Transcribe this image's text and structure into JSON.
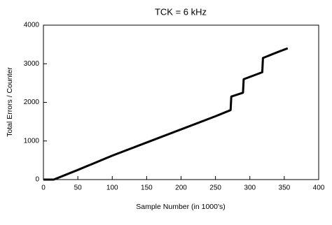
{
  "chart_data": {
    "type": "line",
    "title": "TCK = 6 kHz",
    "xlabel": "Sample Number (in 1000's)",
    "ylabel": "Total Errors / Counter",
    "x": [
      0,
      15,
      50,
      100,
      150,
      200,
      250,
      272,
      273,
      290,
      291,
      318,
      319,
      340,
      355
    ],
    "series": [
      {
        "color": "#000000",
        "values": [
          0,
          0,
          250,
          620,
          960,
          1300,
          1640,
          1800,
          2150,
          2250,
          2600,
          2780,
          3150,
          3300,
          3400
        ]
      }
    ],
    "xlim": [
      0,
      400
    ],
    "xticks": [
      0,
      50,
      100,
      150,
      200,
      250,
      300,
      350,
      400
    ],
    "ylim": [
      0,
      4000
    ],
    "yticks": [
      0,
      1000,
      2000,
      3000,
      4000
    ],
    "grid": false
  }
}
